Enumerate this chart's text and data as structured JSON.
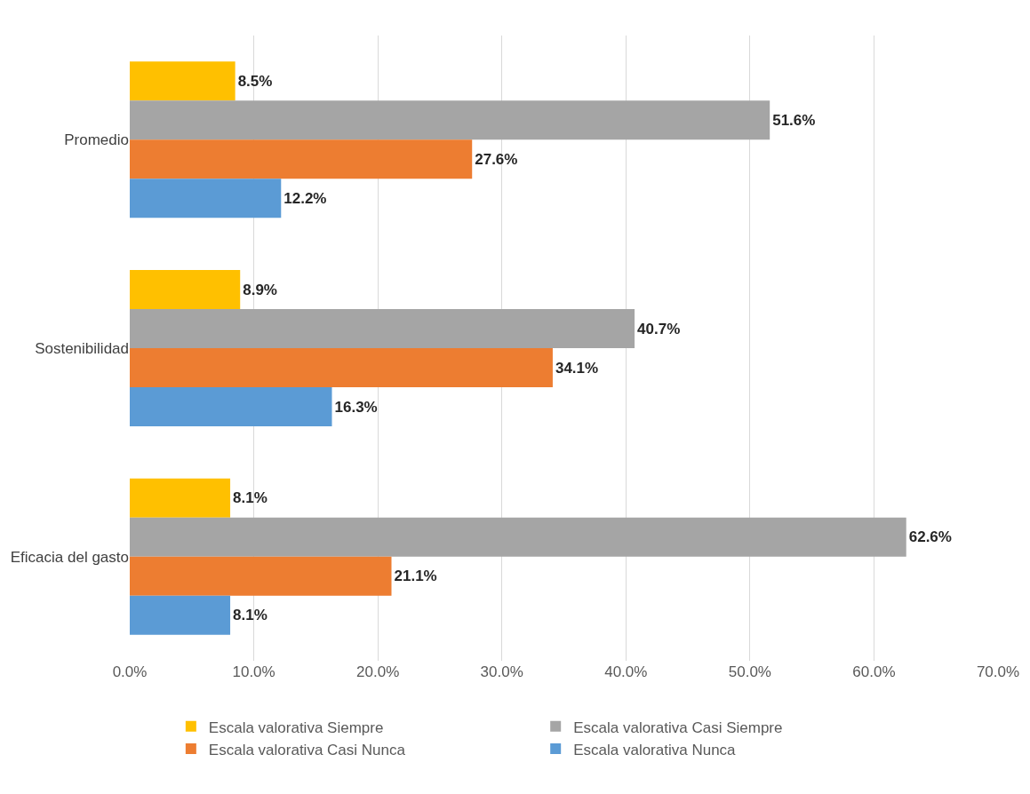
{
  "chart_data": {
    "type": "bar",
    "orientation": "horizontal",
    "categories": [
      "Promedio",
      "Sostenibilidad",
      "Eficacia del gasto"
    ],
    "series": [
      {
        "name": "Escala valorativa Siempre",
        "color": "#ffc000",
        "values": [
          8.5,
          8.9,
          8.1
        ],
        "value_labels": [
          "8.5%",
          "8.9%",
          "8.1%"
        ]
      },
      {
        "name": "Escala valorativa Casi Siempre",
        "color": "#a5a5a5",
        "values": [
          51.6,
          40.7,
          62.6
        ],
        "value_labels": [
          "51.6%",
          "40.7%",
          "62.6%"
        ]
      },
      {
        "name": "Escala valorativa Casi Nunca",
        "color": "#ed7d31",
        "values": [
          27.6,
          34.1,
          21.1
        ],
        "value_labels": [
          "27.6%",
          "34.1%",
          "21.1%"
        ]
      },
      {
        "name": "Escala valorativa Nunca",
        "color": "#5b9bd5",
        "values": [
          12.2,
          16.3,
          8.1
        ],
        "value_labels": [
          "12.2%",
          "16.3%",
          "8.1%"
        ]
      }
    ],
    "xlim": [
      0,
      70
    ],
    "xticks": [
      {
        "value": 0,
        "label": "0.0%"
      },
      {
        "value": 10,
        "label": "10.0%"
      },
      {
        "value": 20,
        "label": "20.0%"
      },
      {
        "value": 30,
        "label": "30.0%"
      },
      {
        "value": 40,
        "label": "40.0%"
      },
      {
        "value": 50,
        "label": "50.0%"
      },
      {
        "value": 60,
        "label": "60.0%"
      },
      {
        "value": 70,
        "label": "70.0%"
      }
    ],
    "grid": "x",
    "legend": "bottom"
  }
}
